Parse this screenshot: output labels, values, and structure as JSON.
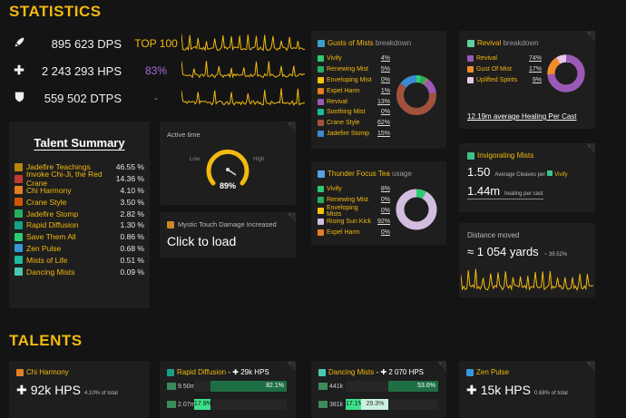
{
  "sections": {
    "statistics": "STATISTICS",
    "talents": "TALENTS"
  },
  "stats": [
    {
      "icon": "rocket-icon",
      "value": "895 623 DPS",
      "rank": "TOP 100",
      "rank_color": "#f2b90f"
    },
    {
      "icon": "plus-icon",
      "value": "2 243 293 HPS",
      "rank": "83%",
      "rank_color": "#a66bdc"
    },
    {
      "icon": "shield-icon",
      "value": "559 502 DTPS",
      "rank": "-",
      "rank_color": "#9a9a9a"
    }
  ],
  "talent_summary": {
    "title": "Talent Summary",
    "items": [
      {
        "name": "Jadefire Teachings",
        "pct": "46.55 %",
        "color": "#b8860b"
      },
      {
        "name": "Invoke Chi-Ji, the Red Crane",
        "pct": "14.36 %",
        "color": "#c0392b"
      },
      {
        "name": "Chi Harmony",
        "pct": "4.10 %",
        "color": "#e67e22"
      },
      {
        "name": "Crane Style",
        "pct": "3.50 %",
        "color": "#d35400"
      },
      {
        "name": "Jadefire Stomp",
        "pct": "2.82 %",
        "color": "#27ae60"
      },
      {
        "name": "Rapid Diffusion",
        "pct": "1.30 %",
        "color": "#16a085"
      },
      {
        "name": "Save Them All",
        "pct": "0.86 %",
        "color": "#2ecc71"
      },
      {
        "name": "Zen Pulse",
        "pct": "0.68 %",
        "color": "#3498db"
      },
      {
        "name": "Mists of Life",
        "pct": "0.51 %",
        "color": "#1abc9c"
      },
      {
        "name": "Dancing Mists",
        "pct": "0.09 %",
        "color": "#48c9b0"
      }
    ]
  },
  "active_time": {
    "label": "Active time",
    "low": "Low",
    "high": "High",
    "value": "89%",
    "fraction": 0.89
  },
  "mystic_touch": {
    "title": "Mystic Touch Damage Increased",
    "action": "Click to load"
  },
  "gusts": {
    "title": "Gusts of Mists",
    "suffix": "breakdown",
    "items": [
      {
        "name": "Vivify",
        "pct": "4%",
        "value": 4,
        "color": "#2ecc71"
      },
      {
        "name": "Renewing Mist",
        "pct": "5%",
        "value": 5,
        "color": "#27ae60"
      },
      {
        "name": "Enveloping Mist",
        "pct": "0%",
        "value": 0,
        "color": "#f1c40f"
      },
      {
        "name": "Expel Harm",
        "pct": "1%",
        "value": 1,
        "color": "#e67e22"
      },
      {
        "name": "Revival",
        "pct": "13%",
        "value": 13,
        "color": "#9b59b6"
      },
      {
        "name": "Soothing Mist",
        "pct": "0%",
        "value": 0,
        "color": "#1abc9c"
      },
      {
        "name": "Crane Style",
        "pct": "62%",
        "value": 62,
        "color": "#a0523d"
      },
      {
        "name": "Jadefire Stomp",
        "pct": "15%",
        "value": 15,
        "color": "#3a8bd1"
      }
    ]
  },
  "revival": {
    "title": "Revival",
    "suffix": "breakdown",
    "items": [
      {
        "name": "Revival",
        "pct": "74%",
        "value": 74,
        "color": "#9b59b6"
      },
      {
        "name": "Gust Of Mist",
        "pct": "17%",
        "value": 17,
        "color": "#f28c28"
      },
      {
        "name": "Uplifted Spirits",
        "pct": "9%",
        "value": 9,
        "color": "#e8c8e8"
      }
    ],
    "footer": "12.19m average Healing Per Cast"
  },
  "thunder": {
    "title": "Thunder Focus Tea",
    "suffix": "usage",
    "items": [
      {
        "name": "Vivify",
        "pct": "8%",
        "value": 8,
        "color": "#2ecc71"
      },
      {
        "name": "Renewing Mist",
        "pct": "0%",
        "value": 0,
        "color": "#27ae60"
      },
      {
        "name": "Enveloping Mists",
        "pct": "0%",
        "value": 0,
        "color": "#f1c40f"
      },
      {
        "name": "Rising Sun Kick",
        "pct": "92%",
        "value": 92,
        "color": "#d2bde0"
      },
      {
        "name": "Expel Harm",
        "pct": "0%",
        "value": 0,
        "color": "#e67e22"
      }
    ]
  },
  "invigorating": {
    "title": "Invigorating Mists",
    "cleaves": "1.50",
    "cleaves_label": "Average Cleaves per",
    "cleaves_spell": "Vivify",
    "healing": "1.44m",
    "healing_label": "healing per cast"
  },
  "distance": {
    "label": "Distance moved",
    "value": "≈ 1 054 yards",
    "pct": "~ 39.52%"
  },
  "talent_cards": [
    {
      "name": "Chi Harmony",
      "value": "92k HPS",
      "sub": "4.10% of total"
    },
    {
      "name": "Rapid Diffusion",
      "sep": "-",
      "hps": "29k HPS",
      "bars": [
        {
          "label": "9.50m",
          "pct": "82.1%",
          "fraction": 0.821
        },
        {
          "label": "2.07m",
          "pct": "17.9%",
          "fraction": 0.179
        }
      ]
    },
    {
      "name": "Dancing Mists",
      "sep": "-",
      "hps": "2 070 HPS",
      "bars": [
        {
          "label": "441k",
          "pct": "53.6%",
          "fraction": 0.536
        },
        {
          "label": "381k",
          "pct": "17.1%",
          "pct2": "29.3%",
          "fraction": 0.171,
          "fraction2": 0.293
        }
      ]
    },
    {
      "name": "Zen Pulse",
      "value": "15k HPS",
      "sub": "0.68% of total"
    }
  ]
}
